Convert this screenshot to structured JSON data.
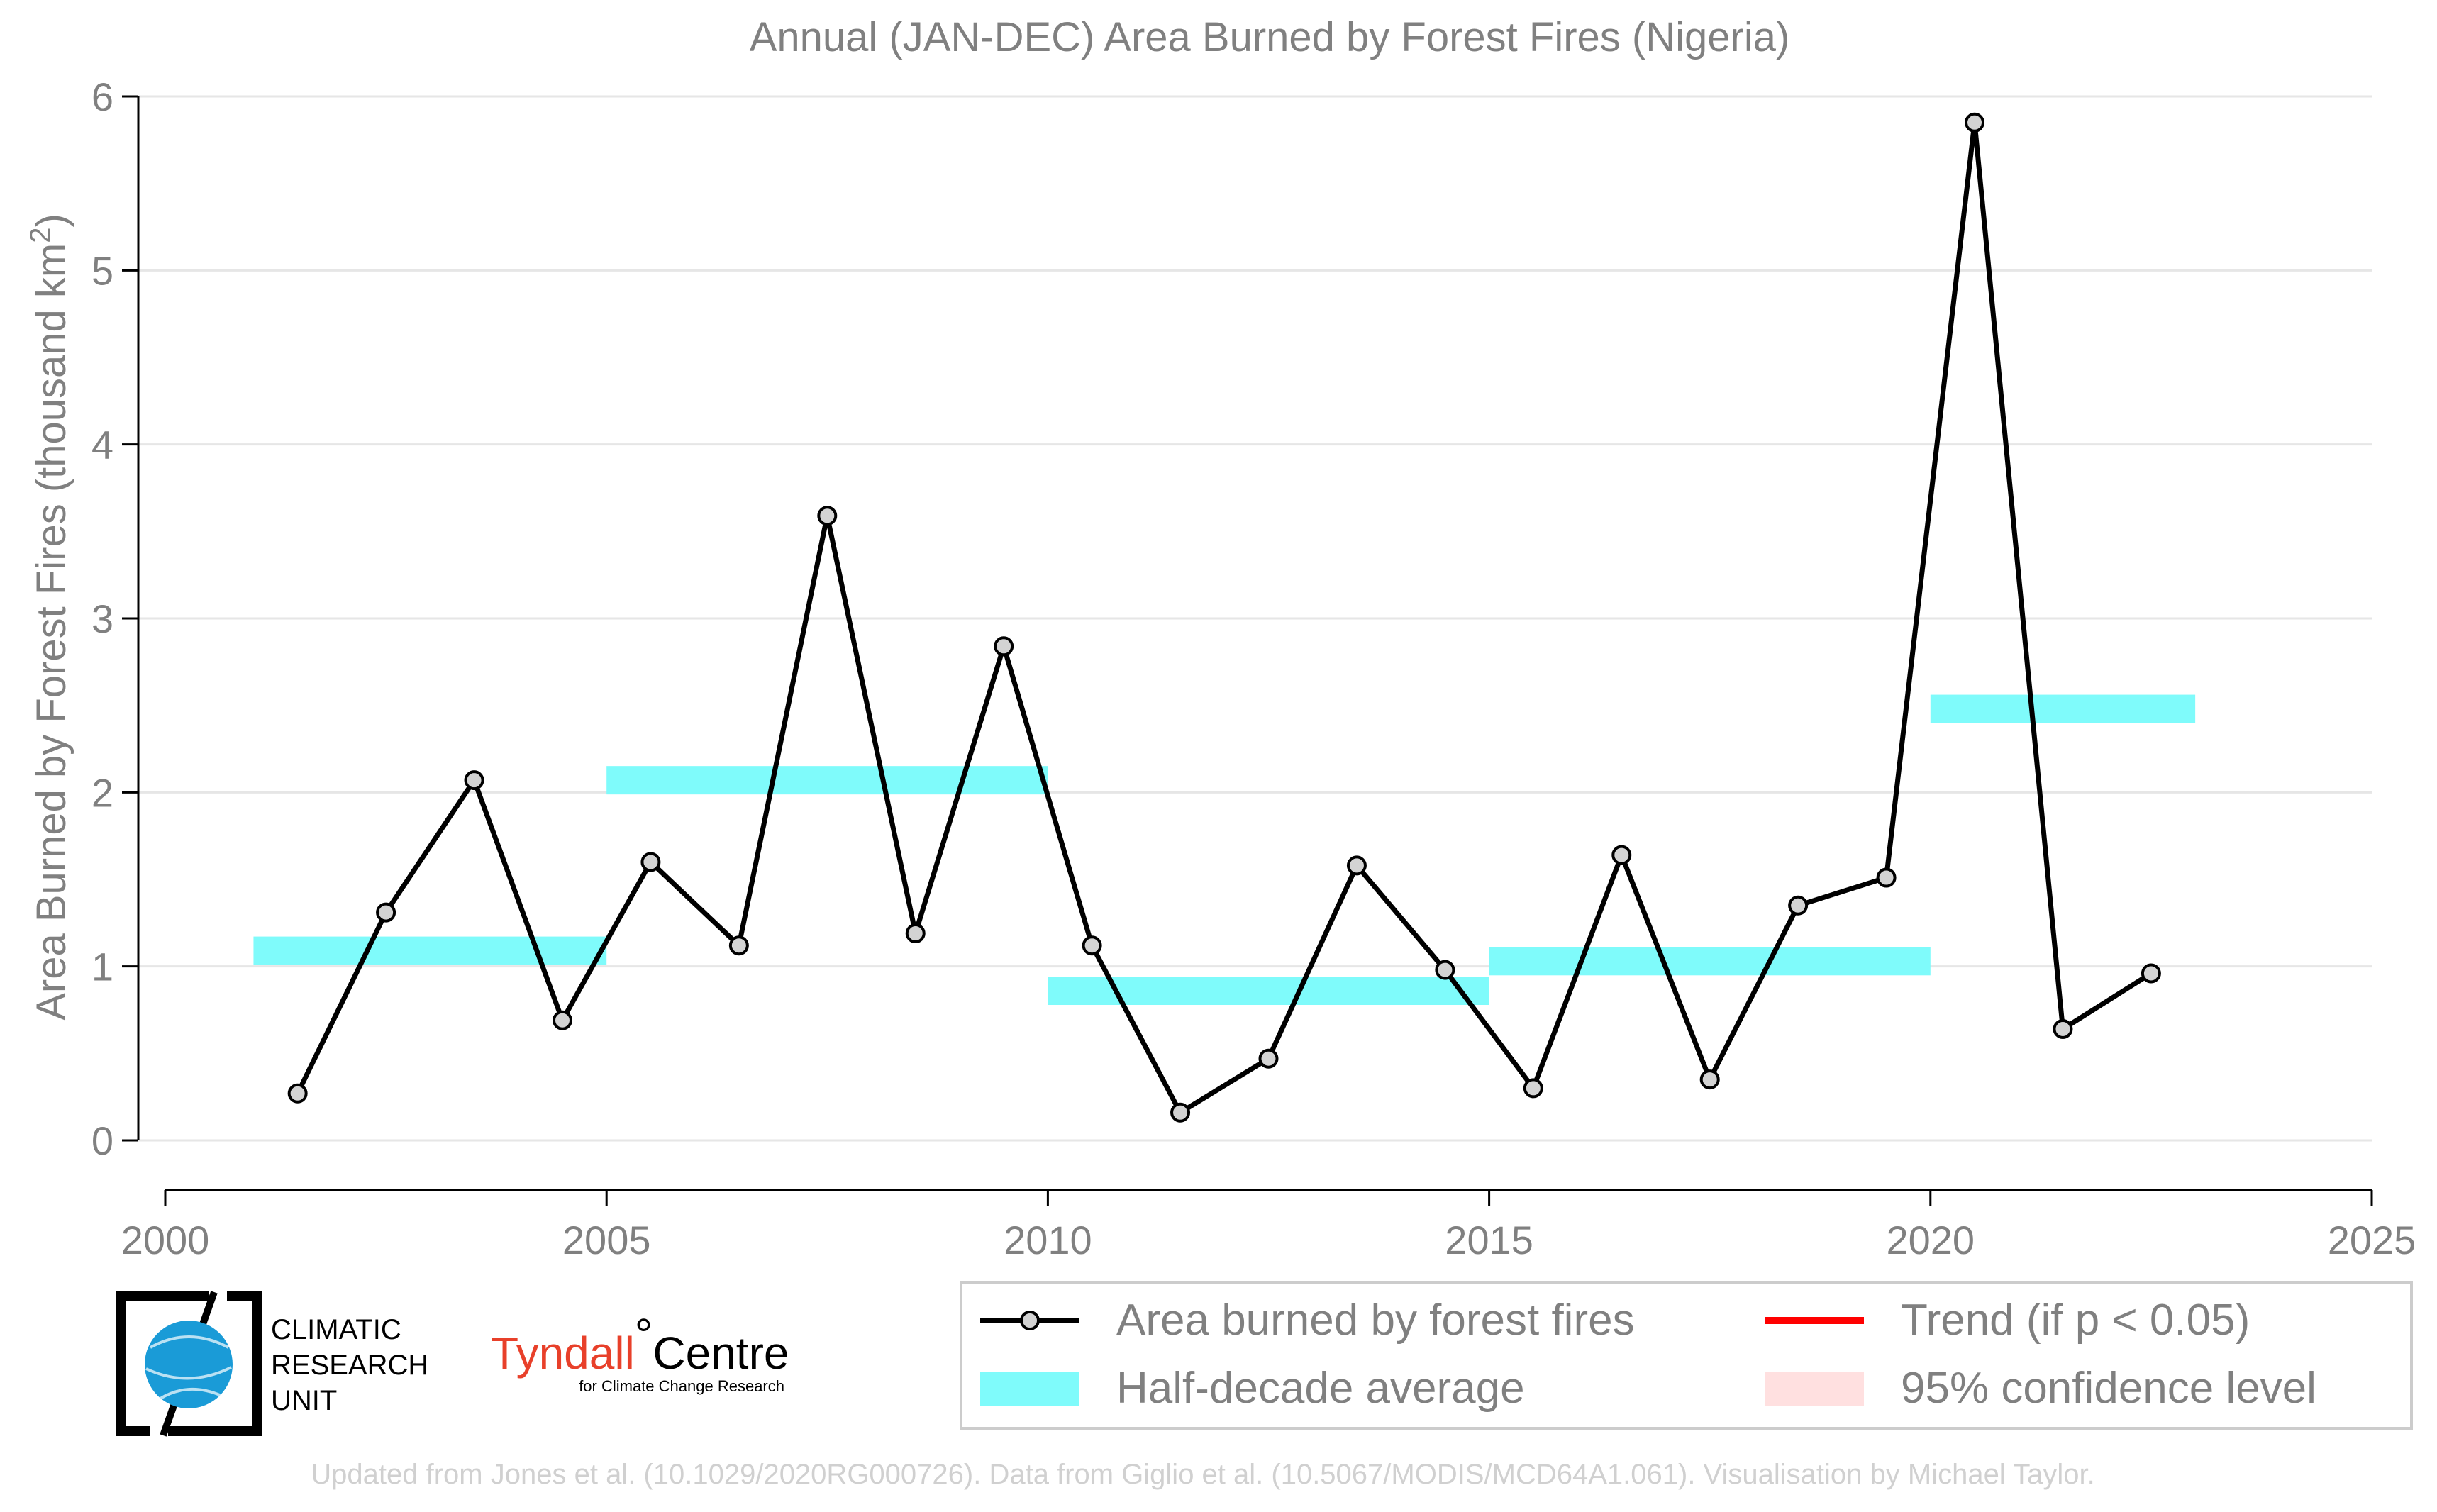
{
  "chart_data": {
    "type": "line",
    "title": "Annual (JAN-DEC) Area Burned by Forest Fires (Nigeria)",
    "xlabel": "",
    "ylabel": "Area Burned by Forest Fires (thousand km²)",
    "xlim": [
      2000,
      2025
    ],
    "ylim": [
      0,
      6
    ],
    "xticks": [
      2000,
      2005,
      2010,
      2015,
      2020,
      2025
    ],
    "yticks": [
      0,
      1,
      2,
      3,
      4,
      5,
      6
    ],
    "grid": "horizontal",
    "legend_position": "bottom-right",
    "series": [
      {
        "name": "Area burned by forest fires",
        "color": "#000000",
        "marker_color": "#d3d3d3",
        "x": [
          2001.5,
          2002.5,
          2003.5,
          2004.5,
          2005.5,
          2006.5,
          2007.5,
          2008.5,
          2009.5,
          2010.5,
          2011.5,
          2012.5,
          2013.5,
          2014.5,
          2015.5,
          2016.5,
          2017.5,
          2018.5,
          2019.5,
          2020.5,
          2021.5,
          2022.5
        ],
        "y": [
          0.27,
          1.31,
          2.07,
          0.69,
          1.6,
          1.12,
          3.59,
          1.19,
          2.84,
          1.12,
          0.16,
          0.47,
          1.58,
          0.98,
          0.3,
          1.64,
          0.35,
          1.35,
          1.51,
          5.85,
          0.64,
          0.96
        ]
      }
    ],
    "half_decade_average": {
      "name": "Half-decade average",
      "color": "#7ffbfb",
      "segments": [
        {
          "x_start": 2001,
          "x_end": 2005,
          "value": 1.09
        },
        {
          "x_start": 2005,
          "x_end": 2010,
          "value": 2.07
        },
        {
          "x_start": 2010,
          "x_end": 2015,
          "value": 0.86
        },
        {
          "x_start": 2015,
          "x_end": 2020,
          "value": 1.03
        },
        {
          "x_start": 2020,
          "x_end": 2023,
          "value": 2.48
        }
      ]
    },
    "legend": [
      {
        "label": "Area burned by forest fires",
        "style": "line-marker",
        "color": "#000000"
      },
      {
        "label": "Trend (if p < 0.05)",
        "style": "line",
        "color": "#ff0000"
      },
      {
        "label": "Half-decade average",
        "style": "band",
        "color": "#7ffbfb"
      },
      {
        "label": "95% confidence level",
        "style": "band",
        "color": "#ffe0e0"
      }
    ]
  },
  "logos": {
    "cru": [
      "CLIMATIC",
      "RESEARCH",
      "UNIT"
    ],
    "tyndall_name": "Tyndall",
    "tyndall_centre": "Centre",
    "tyndall_sub": "for Climate Change Research"
  },
  "credit": "Updated from Jones et al. (10.1029/2020RG000726). Data from Giglio et al. (10.5067/MODIS/MCD64A1.061). Visualisation by Michael Taylor."
}
